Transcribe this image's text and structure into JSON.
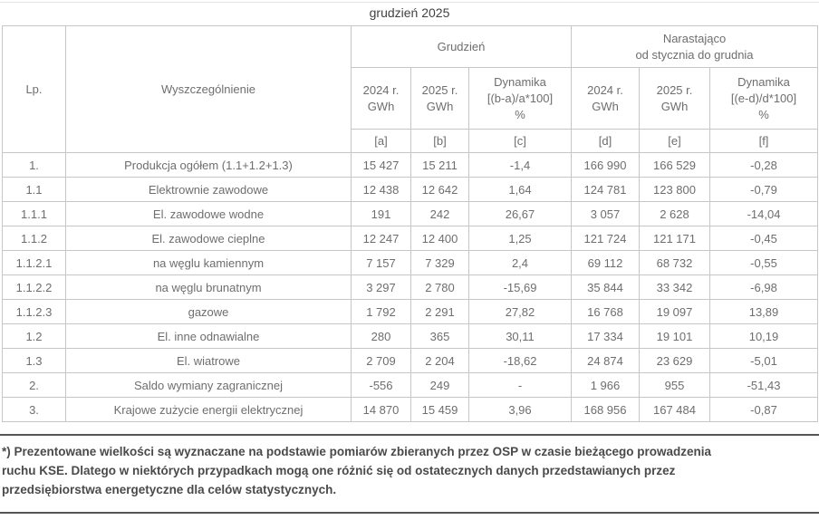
{
  "title": "grudzień 2025",
  "table": {
    "header": {
      "lp": "Lp.",
      "name": "Wyszczególnienie",
      "group_month": "Grudzień",
      "group_cumulative_line1": "Narastająco",
      "group_cumulative_line2": "od stycznia do grudnia",
      "col_a": {
        "year": "2024 r.",
        "unit": "GWh",
        "letter": "[a]"
      },
      "col_b": {
        "year": "2025 r.",
        "unit": "GWh",
        "letter": "[b]"
      },
      "col_c": {
        "line1": "Dynamika",
        "line2": "[(b-a)/a*100]",
        "line3": "%",
        "letter": "[c]"
      },
      "col_d": {
        "year": "2024 r.",
        "unit": "GWh",
        "letter": "[d]"
      },
      "col_e": {
        "year": "2025 r.",
        "unit": "GWh",
        "letter": "[e]"
      },
      "col_f": {
        "line1": "Dynamika",
        "line2": "[(e-d)/d*100]",
        "line3": "%",
        "letter": "[f]"
      }
    },
    "rows": [
      {
        "lp": "1.",
        "name": "Produkcja ogółem (1.1+1.2+1.3)",
        "a": "15 427",
        "b": "15 211",
        "c": "-1,4",
        "d": "166 990",
        "e": "166 529",
        "f": "-0,28"
      },
      {
        "lp": "1.1",
        "name": "Elektrownie zawodowe",
        "a": "12 438",
        "b": "12 642",
        "c": "1,64",
        "d": "124 781",
        "e": "123 800",
        "f": "-0,79"
      },
      {
        "lp": "1.1.1",
        "name": "El. zawodowe wodne",
        "a": "191",
        "b": "242",
        "c": "26,67",
        "d": "3 057",
        "e": "2 628",
        "f": "-14,04"
      },
      {
        "lp": "1.1.2",
        "name": "El. zawodowe cieplne",
        "a": "12 247",
        "b": "12 400",
        "c": "1,25",
        "d": "121 724",
        "e": "121 171",
        "f": "-0,45"
      },
      {
        "lp": "1.1.2.1",
        "name": "na węglu kamiennym",
        "a": "7 157",
        "b": "7 329",
        "c": "2,4",
        "d": "69 112",
        "e": "68 732",
        "f": "-0,55"
      },
      {
        "lp": "1.1.2.2",
        "name": "na węglu brunatnym",
        "a": "3 297",
        "b": "2 780",
        "c": "-15,69",
        "d": "35 844",
        "e": "33 342",
        "f": "-6,98"
      },
      {
        "lp": "1.1.2.3",
        "name": "gazowe",
        "a": "1 792",
        "b": "2 291",
        "c": "27,82",
        "d": "16 768",
        "e": "19 097",
        "f": "13,89"
      },
      {
        "lp": "1.2",
        "name": "El. inne odnawialne",
        "a": "280",
        "b": "365",
        "c": "30,11",
        "d": "17 334",
        "e": "19 101",
        "f": "10,19"
      },
      {
        "lp": "1.3",
        "name": "El. wiatrowe",
        "a": "2 709",
        "b": "2 204",
        "c": "-18,62",
        "d": "24 874",
        "e": "23 629",
        "f": "-5,01"
      },
      {
        "lp": "2.",
        "name": "Saldo wymiany zagranicznej",
        "a": "-556",
        "b": "249",
        "c": "-",
        "d": "1 966",
        "e": "955",
        "f": "-51,43"
      },
      {
        "lp": "3.",
        "name": "Krajowe zużycie energii elektrycznej",
        "a": "14 870",
        "b": "15 459",
        "c": "3,96",
        "d": "168 956",
        "e": "167 484",
        "f": "-0,87"
      }
    ]
  },
  "footnote": {
    "lines": [
      "*) Prezentowane wielkości są wyznaczane na podstawie pomiarów zbieranych przez OSP w czasie bieżącego prowadzenia",
      "ruchu KSE. Dlatego w niektórych przypadkach mogą one różnić się od ostatecznych danych przedstawianych przez",
      "przedsiębiorstwa energetyczne dla celów statystycznych."
    ]
  },
  "colors": {
    "table_text": "#6e6e6e",
    "title_text": "#414141",
    "footnote_text": "#4a4a4a",
    "border": "#c6c6c6",
    "rule": "#555555"
  }
}
